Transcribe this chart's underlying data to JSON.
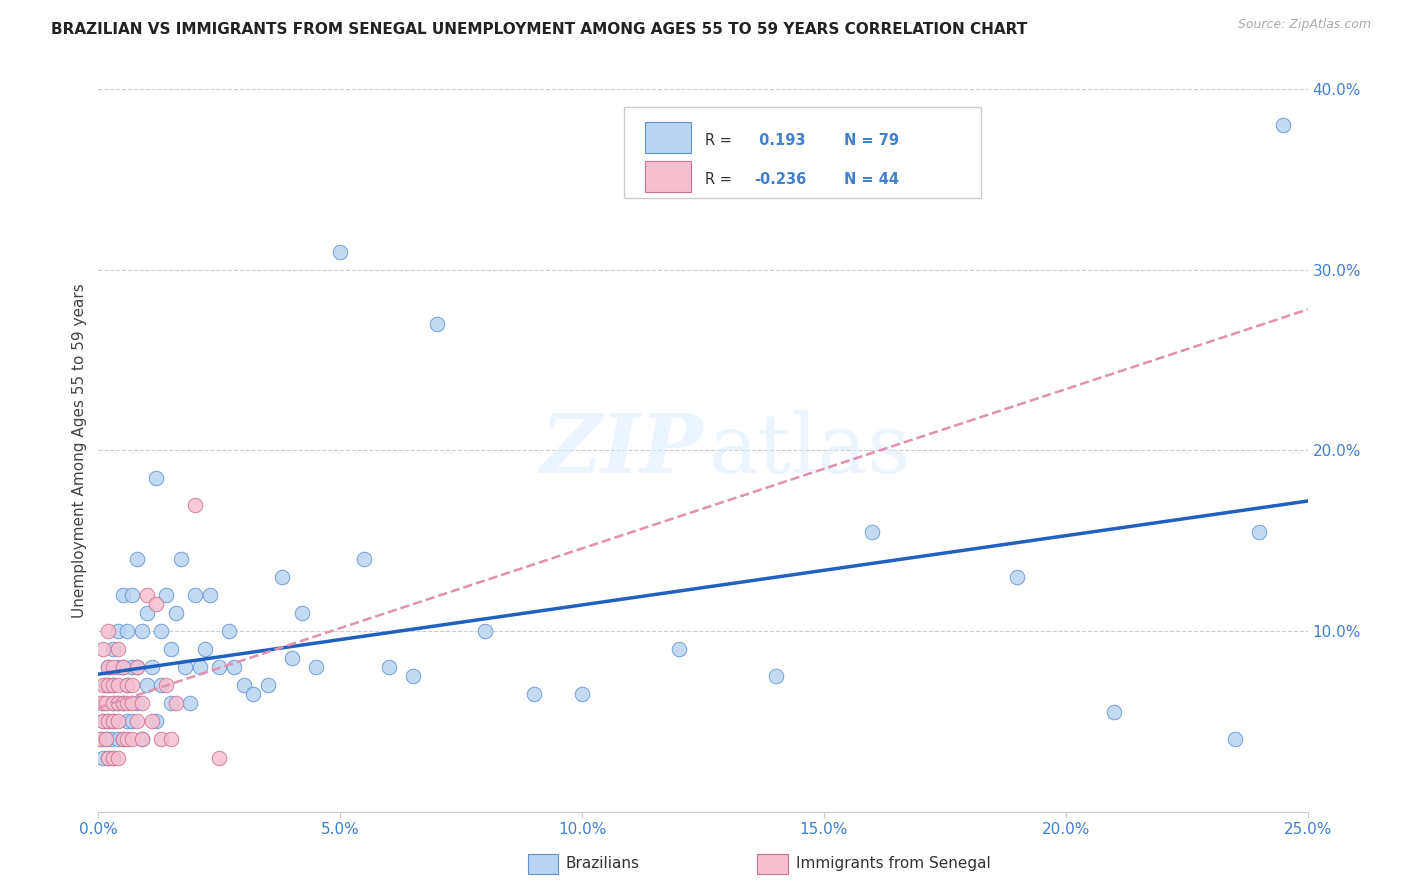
{
  "title": "BRAZILIAN VS IMMIGRANTS FROM SENEGAL UNEMPLOYMENT AMONG AGES 55 TO 59 YEARS CORRELATION CHART",
  "source": "Source: ZipAtlas.com",
  "ylabel": "Unemployment Among Ages 55 to 59 years",
  "xlim": [
    0.0,
    0.25
  ],
  "ylim": [
    0.0,
    0.4
  ],
  "blue_R": 0.193,
  "blue_N": 79,
  "pink_R": -0.236,
  "pink_N": 44,
  "blue_face": "#b8d4f0",
  "blue_edge": "#6090d0",
  "pink_face": "#f4c0d0",
  "pink_edge": "#d07090",
  "blue_line_color": "#2060c0",
  "pink_line_color": "#e090b0",
  "legend_blue": "Brazilians",
  "legend_pink": "Immigrants from Senegal",
  "tick_color": "#4080d0",
  "grid_color": "#cccccc",
  "blue_x": [
    0.0005,
    0.001,
    0.001,
    0.001,
    0.0015,
    0.0015,
    0.002,
    0.002,
    0.002,
    0.002,
    0.0025,
    0.003,
    0.003,
    0.003,
    0.003,
    0.003,
    0.004,
    0.004,
    0.004,
    0.004,
    0.005,
    0.005,
    0.005,
    0.005,
    0.006,
    0.006,
    0.006,
    0.007,
    0.007,
    0.007,
    0.008,
    0.008,
    0.008,
    0.009,
    0.009,
    0.01,
    0.01,
    0.011,
    0.012,
    0.012,
    0.013,
    0.013,
    0.014,
    0.015,
    0.015,
    0.016,
    0.017,
    0.018,
    0.019,
    0.02,
    0.021,
    0.022,
    0.023,
    0.025,
    0.027,
    0.028,
    0.03,
    0.032,
    0.035,
    0.038,
    0.04,
    0.042,
    0.045,
    0.05,
    0.055,
    0.06,
    0.065,
    0.07,
    0.08,
    0.09,
    0.1,
    0.12,
    0.14,
    0.16,
    0.19,
    0.21,
    0.235,
    0.24,
    0.245
  ],
  "blue_y": [
    0.04,
    0.05,
    0.03,
    0.06,
    0.04,
    0.07,
    0.03,
    0.05,
    0.07,
    0.08,
    0.04,
    0.03,
    0.05,
    0.06,
    0.07,
    0.09,
    0.04,
    0.06,
    0.08,
    0.1,
    0.04,
    0.06,
    0.08,
    0.12,
    0.05,
    0.07,
    0.1,
    0.05,
    0.08,
    0.12,
    0.06,
    0.08,
    0.14,
    0.04,
    0.1,
    0.07,
    0.11,
    0.08,
    0.185,
    0.05,
    0.1,
    0.07,
    0.12,
    0.06,
    0.09,
    0.11,
    0.14,
    0.08,
    0.06,
    0.12,
    0.08,
    0.09,
    0.12,
    0.08,
    0.1,
    0.08,
    0.07,
    0.065,
    0.07,
    0.13,
    0.085,
    0.11,
    0.08,
    0.31,
    0.14,
    0.08,
    0.075,
    0.27,
    0.1,
    0.065,
    0.065,
    0.09,
    0.075,
    0.155,
    0.13,
    0.055,
    0.04,
    0.155,
    0.38
  ],
  "pink_x": [
    0.0002,
    0.0005,
    0.001,
    0.001,
    0.001,
    0.0015,
    0.0015,
    0.002,
    0.002,
    0.002,
    0.002,
    0.002,
    0.003,
    0.003,
    0.003,
    0.003,
    0.003,
    0.004,
    0.004,
    0.004,
    0.004,
    0.004,
    0.005,
    0.005,
    0.005,
    0.006,
    0.006,
    0.006,
    0.007,
    0.007,
    0.007,
    0.008,
    0.008,
    0.009,
    0.009,
    0.01,
    0.011,
    0.012,
    0.013,
    0.014,
    0.015,
    0.016,
    0.02,
    0.025
  ],
  "pink_y": [
    0.04,
    0.06,
    0.05,
    0.07,
    0.09,
    0.04,
    0.06,
    0.03,
    0.05,
    0.07,
    0.08,
    0.1,
    0.03,
    0.05,
    0.06,
    0.07,
    0.08,
    0.03,
    0.05,
    0.06,
    0.07,
    0.09,
    0.04,
    0.06,
    0.08,
    0.04,
    0.06,
    0.07,
    0.04,
    0.06,
    0.07,
    0.05,
    0.08,
    0.04,
    0.06,
    0.12,
    0.05,
    0.115,
    0.04,
    0.07,
    0.04,
    0.06,
    0.17,
    0.03
  ]
}
